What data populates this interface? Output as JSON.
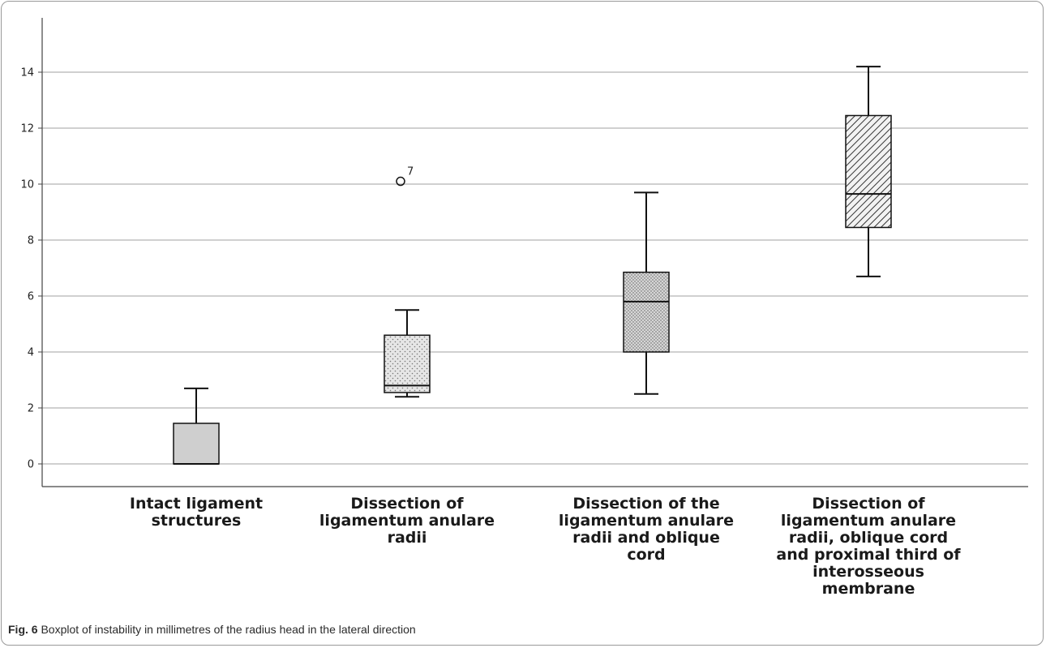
{
  "figure": {
    "caption_label": "Fig. 6",
    "caption_text": "Boxplot of instability in millimetres of the radius head in the lateral direction"
  },
  "chart_data": {
    "type": "boxplot",
    "ylim": [
      -0.8,
      15.8
    ],
    "yticks": [
      0,
      2,
      4,
      6,
      8,
      10,
      12,
      14
    ],
    "grid": true,
    "categories": [
      [
        "Intact ligament",
        "structures"
      ],
      [
        "Dissection of",
        "ligamentum anulare",
        "radii"
      ],
      [
        "Dissection of the",
        "ligamentum anulare",
        "radii and oblique",
        "cord"
      ],
      [
        "Dissection of",
        "ligamentum anulare",
        "radii, oblique cord",
        "and proximal third of",
        "interosseous",
        "membrane"
      ]
    ],
    "boxes": [
      {
        "whisker_low": 0.0,
        "q1": 0.0,
        "median": 0.0,
        "q3": 1.45,
        "whisker_high": 2.7,
        "pattern": "solid",
        "outliers": []
      },
      {
        "whisker_low": 2.4,
        "q1": 2.55,
        "median": 2.8,
        "q3": 4.6,
        "whisker_high": 5.5,
        "pattern": "dots",
        "outliers": [
          {
            "value": 10.1,
            "label": "7"
          }
        ]
      },
      {
        "whisker_low": 2.5,
        "q1": 4.0,
        "median": 5.8,
        "q3": 6.85,
        "whisker_high": 9.7,
        "pattern": "fine-dots",
        "outliers": []
      },
      {
        "whisker_low": 6.7,
        "q1": 8.45,
        "median": 9.65,
        "q3": 12.45,
        "whisker_high": 14.2,
        "pattern": "hatch",
        "outliers": []
      }
    ]
  }
}
